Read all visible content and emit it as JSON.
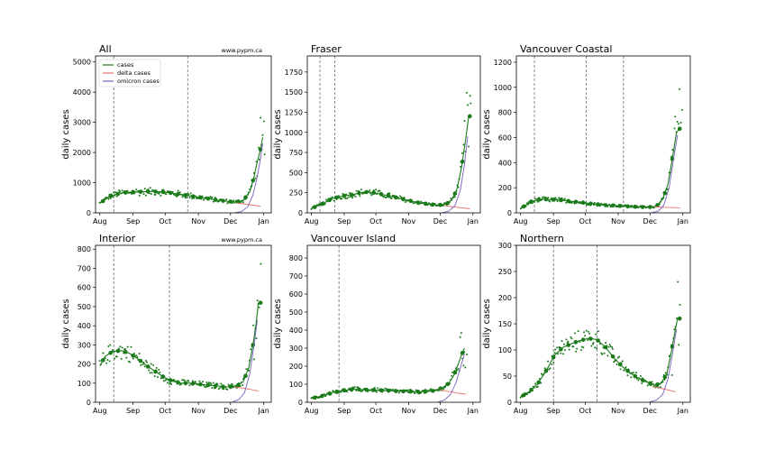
{
  "chart_data": [
    {
      "type": "scatter",
      "title": "All",
      "annotation": "www.pypm.ca",
      "ylabel": "daily cases",
      "ylim": [
        0,
        5200
      ],
      "yticks": [
        0,
        1000,
        2000,
        3000,
        4000,
        5000
      ],
      "xticks": [
        {
          "day": 0,
          "label": "Aug"
        },
        {
          "day": 31,
          "label": "Sep"
        },
        {
          "day": 61,
          "label": "Oct"
        },
        {
          "day": 92,
          "label": "Nov"
        },
        {
          "day": 122,
          "label": "Dec"
        },
        {
          "day": 153,
          "label": "Jan"
        }
      ],
      "xlim": [
        -4,
        160
      ],
      "vlines": [
        13,
        82
      ],
      "legend": {
        "position": "top-left",
        "entries": [
          {
            "label": "cases",
            "color": "#1a7a1a"
          },
          {
            "label": "delta cases",
            "color": "#e8706a"
          },
          {
            "label": "omicron cases",
            "color": "#7a5fc0"
          }
        ]
      },
      "series": [
        {
          "name": "cases",
          "color": "#1a7a1a",
          "points": [
            [
              0,
              320
            ],
            [
              10,
              560
            ],
            [
              20,
              660
            ],
            [
              30,
              690
            ],
            [
              40,
              700
            ],
            [
              50,
              710
            ],
            [
              60,
              690
            ],
            [
              70,
              640
            ],
            [
              80,
              590
            ],
            [
              90,
              530
            ],
            [
              100,
              480
            ],
            [
              110,
              420
            ],
            [
              120,
              380
            ],
            [
              128,
              360
            ],
            [
              134,
              420
            ],
            [
              140,
              700
            ],
            [
              144,
              1200
            ],
            [
              147,
              1700
            ],
            [
              150,
              2100
            ],
            [
              152,
              2500
            ]
          ]
        },
        {
          "name": "delta cases",
          "color": "#e8706a",
          "points": [
            [
              128,
              330
            ],
            [
              134,
              300
            ],
            [
              140,
              270
            ],
            [
              146,
              240
            ],
            [
              150,
              220
            ]
          ]
        },
        {
          "name": "omicron cases",
          "color": "#7a5fc0",
          "points": [
            [
              126,
              5
            ],
            [
              132,
              40
            ],
            [
              138,
              200
            ],
            [
              143,
              600
            ],
            [
              147,
              1200
            ],
            [
              150,
              1800
            ],
            [
              152,
              2300
            ]
          ]
        }
      ],
      "scatter_trend": "cases"
    },
    {
      "type": "scatter",
      "title": "Fraser",
      "ylabel": "daily cases",
      "ylim": [
        0,
        1950
      ],
      "yticks": [
        0,
        250,
        500,
        750,
        1000,
        1250,
        1500,
        1750
      ],
      "xticks": [
        {
          "day": 0,
          "label": "Aug"
        },
        {
          "day": 31,
          "label": "Sep"
        },
        {
          "day": 61,
          "label": "Oct"
        },
        {
          "day": 92,
          "label": "Nov"
        },
        {
          "day": 122,
          "label": "Dec"
        },
        {
          "day": 153,
          "label": "Jan"
        }
      ],
      "xlim": [
        -4,
        160
      ],
      "vlines": [
        8,
        22
      ],
      "series": [
        {
          "name": "cases",
          "color": "#1a7a1a",
          "points": [
            [
              0,
              55
            ],
            [
              10,
              110
            ],
            [
              20,
              180
            ],
            [
              30,
              210
            ],
            [
              40,
              230
            ],
            [
              50,
              260
            ],
            [
              60,
              250
            ],
            [
              70,
              220
            ],
            [
              80,
              190
            ],
            [
              90,
              160
            ],
            [
              100,
              130
            ],
            [
              110,
              110
            ],
            [
              120,
              95
            ],
            [
              128,
              110
            ],
            [
              134,
              180
            ],
            [
              138,
              300
            ],
            [
              142,
              550
            ],
            [
              146,
              900
            ],
            [
              149,
              1200
            ]
          ]
        },
        {
          "name": "delta cases",
          "color": "#e8706a",
          "points": [
            [
              126,
              90
            ],
            [
              132,
              80
            ],
            [
              138,
              70
            ],
            [
              144,
              60
            ],
            [
              150,
              50
            ]
          ]
        },
        {
          "name": "omicron cases",
          "color": "#7a5fc0",
          "points": [
            [
              124,
              2
            ],
            [
              130,
              20
            ],
            [
              136,
              90
            ],
            [
              141,
              280
            ],
            [
              145,
              600
            ],
            [
              148,
              950
            ]
          ]
        }
      ],
      "scatter_trend": "cases"
    },
    {
      "type": "scatter",
      "title": "Vancouver Coastal",
      "ylabel": "daily cases",
      "ylim": [
        0,
        1250
      ],
      "yticks": [
        0,
        200,
        400,
        600,
        800,
        1000,
        1200
      ],
      "xticks": [
        {
          "day": 0,
          "label": "Aug"
        },
        {
          "day": 31,
          "label": "Sep"
        },
        {
          "day": 61,
          "label": "Oct"
        },
        {
          "day": 92,
          "label": "Nov"
        },
        {
          "day": 122,
          "label": "Dec"
        },
        {
          "day": 153,
          "label": "Jan"
        }
      ],
      "xlim": [
        -4,
        160
      ],
      "vlines": [
        13,
        62,
        97
      ],
      "series": [
        {
          "name": "cases",
          "color": "#1a7a1a",
          "points": [
            [
              0,
              35
            ],
            [
              10,
              90
            ],
            [
              20,
              110
            ],
            [
              30,
              105
            ],
            [
              40,
              100
            ],
            [
              50,
              90
            ],
            [
              60,
              80
            ],
            [
              70,
              70
            ],
            [
              80,
              62
            ],
            [
              90,
              58
            ],
            [
              100,
              52
            ],
            [
              110,
              48
            ],
            [
              120,
              45
            ],
            [
              128,
              52
            ],
            [
              134,
              110
            ],
            [
              139,
              230
            ],
            [
              143,
              430
            ],
            [
              147,
              640
            ],
            [
              150,
              670
            ]
          ]
        },
        {
          "name": "delta cases",
          "color": "#e8706a",
          "points": [
            [
              126,
              48
            ],
            [
              132,
              46
            ],
            [
              138,
              44
            ],
            [
              144,
              42
            ],
            [
              150,
              40
            ]
          ]
        },
        {
          "name": "omicron cases",
          "color": "#7a5fc0",
          "points": [
            [
              124,
              2
            ],
            [
              130,
              15
            ],
            [
              135,
              60
            ],
            [
              140,
              200
            ],
            [
              144,
              420
            ],
            [
              148,
              620
            ]
          ]
        }
      ],
      "scatter_trend": "cases"
    },
    {
      "type": "scatter",
      "title": "Interior",
      "annotation": "www.pypm.ca",
      "ylabel": "daily cases",
      "ylim": [
        0,
        820
      ],
      "yticks": [
        0,
        100,
        200,
        300,
        400,
        500,
        600,
        700,
        800
      ],
      "xticks": [
        {
          "day": 0,
          "label": "Aug"
        },
        {
          "day": 31,
          "label": "Sep"
        },
        {
          "day": 61,
          "label": "Oct"
        },
        {
          "day": 92,
          "label": "Nov"
        },
        {
          "day": 122,
          "label": "Dec"
        },
        {
          "day": 153,
          "label": "Jan"
        }
      ],
      "xlim": [
        -4,
        160
      ],
      "vlines": [
        13,
        65
      ],
      "series": [
        {
          "name": "cases",
          "color": "#1a7a1a",
          "points": [
            [
              0,
              190
            ],
            [
              5,
              240
            ],
            [
              12,
              265
            ],
            [
              20,
              270
            ],
            [
              28,
              255
            ],
            [
              36,
              225
            ],
            [
              44,
              190
            ],
            [
              52,
              160
            ],
            [
              60,
              130
            ],
            [
              68,
              110
            ],
            [
              76,
              100
            ],
            [
              84,
              100
            ],
            [
              92,
              95
            ],
            [
              100,
              90
            ],
            [
              110,
              85
            ],
            [
              120,
              80
            ],
            [
              128,
              85
            ],
            [
              134,
              110
            ],
            [
              139,
              180
            ],
            [
              143,
              300
            ],
            [
              146,
              420
            ],
            [
              148,
              520
            ]
          ]
        },
        {
          "name": "delta cases",
          "color": "#e8706a",
          "points": [
            [
              126,
              80
            ],
            [
              132,
              75
            ],
            [
              138,
              70
            ],
            [
              144,
              63
            ],
            [
              148,
              58
            ]
          ]
        },
        {
          "name": "omicron cases",
          "color": "#7a5fc0",
          "points": [
            [
              124,
              2
            ],
            [
              130,
              15
            ],
            [
              135,
              50
            ],
            [
              140,
              150
            ],
            [
              144,
              300
            ],
            [
              147,
              430
            ]
          ]
        }
      ],
      "scatter_trend": "cases"
    },
    {
      "type": "scatter",
      "title": "Vancouver Island",
      "ylabel": "daily cases",
      "ylim": [
        0,
        870
      ],
      "yticks": [
        0,
        100,
        200,
        300,
        400,
        500,
        600,
        700,
        800
      ],
      "xticks": [
        {
          "day": 0,
          "label": "Aug"
        },
        {
          "day": 31,
          "label": "Sep"
        },
        {
          "day": 61,
          "label": "Oct"
        },
        {
          "day": 92,
          "label": "Nov"
        },
        {
          "day": 122,
          "label": "Dec"
        },
        {
          "day": 153,
          "label": "Jan"
        }
      ],
      "xlim": [
        -4,
        160
      ],
      "vlines": [
        26
      ],
      "series": [
        {
          "name": "cases",
          "color": "#1a7a1a",
          "points": [
            [
              0,
              22
            ],
            [
              10,
              35
            ],
            [
              20,
              55
            ],
            [
              30,
              65
            ],
            [
              40,
              72
            ],
            [
              50,
              70
            ],
            [
              60,
              68
            ],
            [
              70,
              65
            ],
            [
              80,
              62
            ],
            [
              90,
              60
            ],
            [
              100,
              58
            ],
            [
              110,
              60
            ],
            [
              118,
              65
            ],
            [
              124,
              80
            ],
            [
              130,
              105
            ],
            [
              135,
              150
            ],
            [
              139,
              210
            ],
            [
              142,
              260
            ],
            [
              145,
              300
            ]
          ]
        },
        {
          "name": "delta cases",
          "color": "#e8706a",
          "points": [
            [
              122,
              70
            ],
            [
              128,
              62
            ],
            [
              134,
              56
            ],
            [
              140,
              50
            ],
            [
              146,
              45
            ]
          ]
        },
        {
          "name": "omicron cases",
          "color": "#7a5fc0",
          "points": [
            [
              120,
              2
            ],
            [
              126,
              12
            ],
            [
              132,
              45
            ],
            [
              137,
              110
            ],
            [
              141,
              190
            ],
            [
              145,
              270
            ]
          ]
        }
      ],
      "scatter_trend": "cases"
    },
    {
      "type": "scatter",
      "title": "Northern",
      "ylabel": "daily cases",
      "ylim": [
        0,
        300
      ],
      "yticks": [
        0,
        50,
        100,
        150,
        200,
        250,
        300
      ],
      "xticks": [
        {
          "day": 0,
          "label": "Aug"
        },
        {
          "day": 31,
          "label": "Sep"
        },
        {
          "day": 61,
          "label": "Oct"
        },
        {
          "day": 92,
          "label": "Nov"
        },
        {
          "day": 122,
          "label": "Dec"
        },
        {
          "day": 153,
          "label": "Jan"
        }
      ],
      "xlim": [
        -4,
        160
      ],
      "vlines": [
        31,
        72
      ],
      "series": [
        {
          "name": "cases",
          "color": "#1a7a1a",
          "points": [
            [
              0,
              10
            ],
            [
              8,
              20
            ],
            [
              16,
              35
            ],
            [
              24,
              60
            ],
            [
              32,
              90
            ],
            [
              40,
              105
            ],
            [
              48,
              112
            ],
            [
              56,
              118
            ],
            [
              64,
              122
            ],
            [
              72,
              120
            ],
            [
              80,
              105
            ],
            [
              88,
              85
            ],
            [
              96,
              68
            ],
            [
              104,
              55
            ],
            [
              112,
              45
            ],
            [
              120,
              38
            ],
            [
              126,
              33
            ],
            [
              132,
              35
            ],
            [
              138,
              55
            ],
            [
              142,
              95
            ],
            [
              146,
              140
            ],
            [
              148,
              160
            ]
          ]
        },
        {
          "name": "delta cases",
          "color": "#e8706a",
          "points": [
            [
              124,
              30
            ],
            [
              130,
              28
            ],
            [
              136,
              25
            ],
            [
              142,
              22
            ],
            [
              146,
              20
            ]
          ]
        },
        {
          "name": "omicron cases",
          "color": "#7a5fc0",
          "points": [
            [
              122,
              1
            ],
            [
              128,
              4
            ],
            [
              134,
              15
            ],
            [
              139,
              45
            ],
            [
              143,
              90
            ],
            [
              147,
              140
            ]
          ]
        }
      ],
      "scatter_trend": "cases"
    }
  ]
}
